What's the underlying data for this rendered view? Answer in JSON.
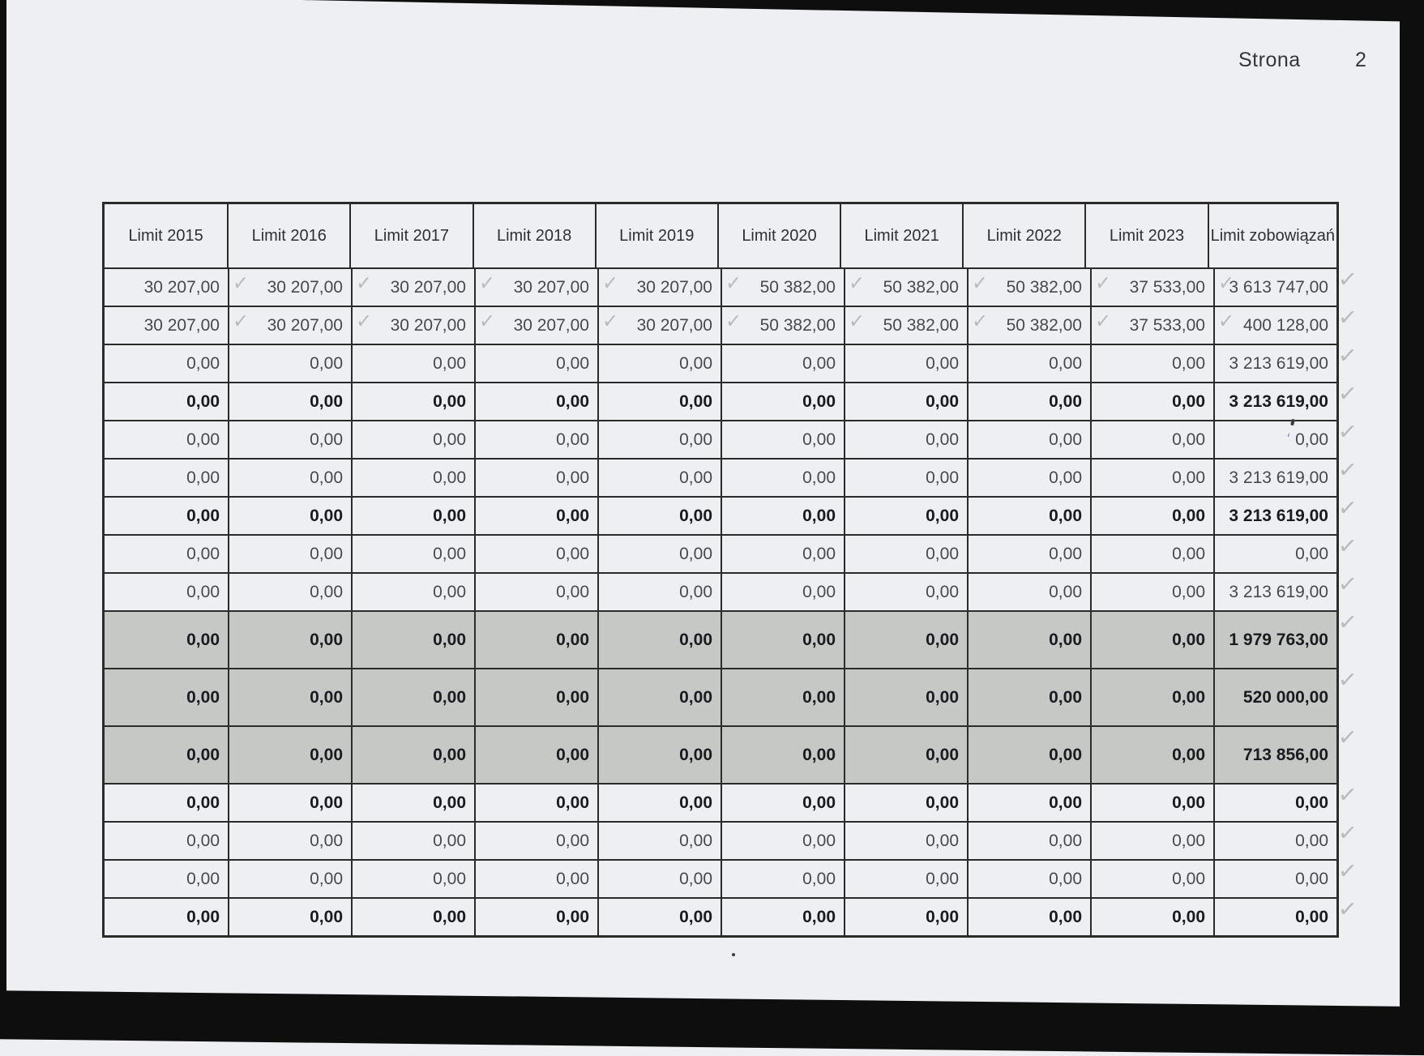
{
  "page": {
    "label": "Strona",
    "number": "2"
  },
  "table": {
    "columns": [
      "Limit 2015",
      "Limit 2016",
      "Limit 2017",
      "Limit 2018",
      "Limit 2019",
      "Limit 2020",
      "Limit 2021",
      "Limit 2022",
      "Limit 2023",
      "Limit zobowiązań"
    ],
    "rows": [
      {
        "values": [
          "30 207,00",
          "30 207,00",
          "30 207,00",
          "30 207,00",
          "30 207,00",
          "50 382,00",
          "50 382,00",
          "50 382,00",
          "37 533,00",
          "3 613 747,00"
        ],
        "bold": false,
        "gray": false,
        "checks_between": true,
        "check_right": true,
        "blue_mark": false
      },
      {
        "values": [
          "30 207,00",
          "30 207,00",
          "30 207,00",
          "30 207,00",
          "30 207,00",
          "50 382,00",
          "50 382,00",
          "50 382,00",
          "37 533,00",
          "400 128,00"
        ],
        "bold": false,
        "gray": false,
        "checks_between": true,
        "check_right": true,
        "blue_mark": false
      },
      {
        "values": [
          "0,00",
          "0,00",
          "0,00",
          "0,00",
          "0,00",
          "0,00",
          "0,00",
          "0,00",
          "0,00",
          "3 213 619,00"
        ],
        "bold": false,
        "gray": false,
        "checks_between": false,
        "check_right": true,
        "blue_mark": false
      },
      {
        "values": [
          "0,00",
          "0,00",
          "0,00",
          "0,00",
          "0,00",
          "0,00",
          "0,00",
          "0,00",
          "0,00",
          "3 213 619,00"
        ],
        "bold": true,
        "gray": false,
        "checks_between": false,
        "check_right": true,
        "blue_mark": false
      },
      {
        "values": [
          "0,00",
          "0,00",
          "0,00",
          "0,00",
          "0,00",
          "0,00",
          "0,00",
          "0,00",
          "0,00",
          "0,00"
        ],
        "bold": false,
        "gray": false,
        "checks_between": false,
        "check_right": true,
        "blue_mark": true
      },
      {
        "values": [
          "0,00",
          "0,00",
          "0,00",
          "0,00",
          "0,00",
          "0,00",
          "0,00",
          "0,00",
          "0,00",
          "3 213 619,00"
        ],
        "bold": false,
        "gray": false,
        "checks_between": false,
        "check_right": true,
        "blue_mark": false
      },
      {
        "values": [
          "0,00",
          "0,00",
          "0,00",
          "0,00",
          "0,00",
          "0,00",
          "0,00",
          "0,00",
          "0,00",
          "3 213 619,00"
        ],
        "bold": true,
        "gray": false,
        "checks_between": false,
        "check_right": true,
        "blue_mark": false
      },
      {
        "values": [
          "0,00",
          "0,00",
          "0,00",
          "0,00",
          "0,00",
          "0,00",
          "0,00",
          "0,00",
          "0,00",
          "0,00"
        ],
        "bold": false,
        "gray": false,
        "checks_between": false,
        "check_right": true,
        "blue_mark": false
      },
      {
        "values": [
          "0,00",
          "0,00",
          "0,00",
          "0,00",
          "0,00",
          "0,00",
          "0,00",
          "0,00",
          "0,00",
          "3 213 619,00"
        ],
        "bold": false,
        "gray": false,
        "checks_between": false,
        "check_right": true,
        "blue_mark": false
      },
      {
        "values": [
          "0,00",
          "0,00",
          "0,00",
          "0,00",
          "0,00",
          "0,00",
          "0,00",
          "0,00",
          "0,00",
          "1 979 763,00"
        ],
        "bold": true,
        "gray": true,
        "checks_between": false,
        "check_right": true,
        "blue_mark": false
      },
      {
        "values": [
          "0,00",
          "0,00",
          "0,00",
          "0,00",
          "0,00",
          "0,00",
          "0,00",
          "0,00",
          "0,00",
          "520 000,00"
        ],
        "bold": true,
        "gray": true,
        "checks_between": false,
        "check_right": true,
        "blue_mark": false
      },
      {
        "values": [
          "0,00",
          "0,00",
          "0,00",
          "0,00",
          "0,00",
          "0,00",
          "0,00",
          "0,00",
          "0,00",
          "713 856,00"
        ],
        "bold": true,
        "gray": true,
        "checks_between": false,
        "check_right": true,
        "blue_mark": false
      },
      {
        "values": [
          "0,00",
          "0,00",
          "0,00",
          "0,00",
          "0,00",
          "0,00",
          "0,00",
          "0,00",
          "0,00",
          "0,00"
        ],
        "bold": true,
        "gray": false,
        "checks_between": false,
        "check_right": true,
        "blue_mark": false
      },
      {
        "values": [
          "0,00",
          "0,00",
          "0,00",
          "0,00",
          "0,00",
          "0,00",
          "0,00",
          "0,00",
          "0,00",
          "0,00"
        ],
        "bold": false,
        "gray": false,
        "checks_between": false,
        "check_right": true,
        "blue_mark": false
      },
      {
        "values": [
          "0,00",
          "0,00",
          "0,00",
          "0,00",
          "0,00",
          "0,00",
          "0,00",
          "0,00",
          "0,00",
          "0,00"
        ],
        "bold": false,
        "gray": false,
        "checks_between": false,
        "check_right": true,
        "blue_mark": false
      },
      {
        "values": [
          "0,00",
          "0,00",
          "0,00",
          "0,00",
          "0,00",
          "0,00",
          "0,00",
          "0,00",
          "0,00",
          "0,00"
        ],
        "bold": true,
        "gray": false,
        "checks_between": false,
        "check_right": true,
        "blue_mark": false
      }
    ]
  },
  "marks": {
    "check_glyph": "✓",
    "blue_mark_glyph": "ʻ"
  },
  "colors": {
    "paper": "#edeff3",
    "line": "#2b2b2c",
    "ink": "#47494d",
    "ink_bold": "#191b1e",
    "ink_header": "#2e3134",
    "grayband": "#c6c8c6",
    "check": "#b2b6bb",
    "blue": "#6b94d6",
    "black_edge": "#0e0e0f"
  }
}
